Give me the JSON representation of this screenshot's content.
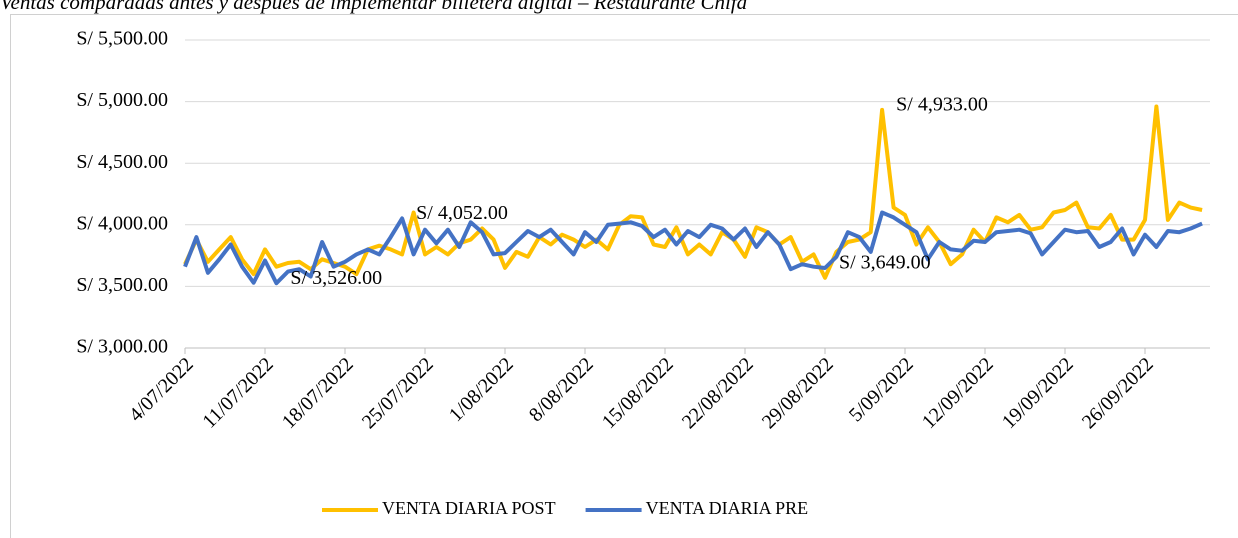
{
  "chart_data": {
    "type": "line",
    "title": "Ventas comparadas antes y después de implementar billetera digital – Restaurante Chifa",
    "categories": [
      "4/07/2022",
      null,
      null,
      null,
      null,
      null,
      null,
      "11/07/2022",
      null,
      null,
      null,
      null,
      null,
      null,
      "18/07/2022",
      null,
      null,
      null,
      null,
      null,
      null,
      "25/07/2022",
      null,
      null,
      null,
      null,
      null,
      null,
      "1/08/2022",
      null,
      null,
      null,
      null,
      null,
      null,
      "8/08/2022",
      null,
      null,
      null,
      null,
      null,
      null,
      "15/08/2022",
      null,
      null,
      null,
      null,
      null,
      null,
      "22/08/2022",
      null,
      null,
      null,
      null,
      null,
      null,
      "29/08/2022",
      null,
      null,
      null,
      null,
      null,
      null,
      "5/09/2022",
      null,
      null,
      null,
      null,
      null,
      null,
      "12/09/2022",
      null,
      null,
      null,
      null,
      null,
      null,
      "19/09/2022",
      null,
      null,
      null,
      null,
      null,
      null,
      "26/09/2022",
      null,
      null,
      null,
      null,
      null
    ],
    "series": [
      {
        "name": "VENTA DIARIA POST",
        "color": "#FFC000",
        "values": [
          3680,
          3880,
          3700,
          3800,
          3900,
          3720,
          3600,
          3800,
          3660,
          3690,
          3700,
          3640,
          3720,
          3690,
          3660,
          3600,
          3800,
          3830,
          3800,
          3760,
          4100,
          3760,
          3820,
          3760,
          3850,
          3880,
          3970,
          3880,
          3650,
          3780,
          3740,
          3900,
          3840,
          3920,
          3880,
          3820,
          3880,
          3800,
          4000,
          4070,
          4060,
          3840,
          3820,
          3980,
          3760,
          3840,
          3760,
          3940,
          3880,
          3740,
          3980,
          3940,
          3840,
          3900,
          3700,
          3760,
          3570,
          3780,
          3860,
          3880,
          3940,
          4933,
          4140,
          4080,
          3840,
          3980,
          3860,
          3680,
          3760,
          3960,
          3860,
          4060,
          4020,
          4080,
          3960,
          3980,
          4100,
          4120,
          4180,
          3980,
          3970,
          4080,
          3880,
          3880,
          4040,
          4960,
          4040,
          4180,
          4140,
          4120
        ],
        "value_labels": [
          null,
          null,
          null,
          null,
          null,
          null,
          null,
          null,
          null,
          null,
          null,
          null,
          null,
          null,
          null,
          null,
          null,
          null,
          null,
          null,
          null,
          null,
          null,
          null,
          null,
          null,
          null,
          null,
          null,
          null,
          null,
          null,
          null,
          null,
          null,
          null,
          null,
          null,
          null,
          null,
          null,
          null,
          null,
          null,
          null,
          null,
          null,
          null,
          null,
          null,
          null,
          null,
          null,
          null,
          null,
          null,
          null,
          null,
          null,
          null,
          null,
          "S/ 4,933.00",
          null,
          null,
          null,
          null,
          null,
          null,
          null,
          null,
          null,
          null,
          null,
          null,
          null,
          null,
          null,
          null,
          null,
          null,
          null,
          null,
          null,
          null,
          null,
          null,
          null,
          null,
          null,
          null
        ]
      },
      {
        "name": "VENTA DIARIA PRE",
        "color": "#4472C4",
        "values": [
          3660,
          3900,
          3610,
          3720,
          3840,
          3660,
          3530,
          3710,
          3526,
          3620,
          3640,
          3580,
          3860,
          3660,
          3700,
          3760,
          3800,
          3760,
          3900,
          4052,
          3760,
          3960,
          3850,
          3960,
          3820,
          4020,
          3940,
          3760,
          3770,
          3860,
          3950,
          3900,
          3960,
          3860,
          3760,
          3940,
          3860,
          4000,
          4010,
          4020,
          3990,
          3900,
          3960,
          3840,
          3950,
          3900,
          4000,
          3970,
          3880,
          3970,
          3820,
          3940,
          3840,
          3640,
          3680,
          3660,
          3649,
          3740,
          3940,
          3900,
          3780,
          4100,
          4060,
          4000,
          3940,
          3720,
          3860,
          3800,
          3790,
          3870,
          3860,
          3940,
          3950,
          3960,
          3930,
          3760,
          3860,
          3960,
          3940,
          3950,
          3820,
          3860,
          3970,
          3760,
          3920,
          3820,
          3950,
          3940,
          3970,
          4010
        ],
        "value_labels": [
          null,
          null,
          null,
          null,
          null,
          null,
          null,
          null,
          "S/ 3,526.00",
          null,
          null,
          null,
          null,
          null,
          null,
          null,
          null,
          null,
          null,
          "S/ 4,052.00",
          null,
          null,
          null,
          null,
          null,
          null,
          null,
          null,
          null,
          null,
          null,
          null,
          null,
          null,
          null,
          null,
          null,
          null,
          null,
          null,
          null,
          null,
          null,
          null,
          null,
          null,
          null,
          null,
          null,
          null,
          null,
          null,
          null,
          null,
          null,
          null,
          "S/ 3,649.00",
          null,
          null,
          null,
          null,
          null,
          null,
          null,
          null,
          null,
          null,
          null,
          null,
          null,
          null,
          null,
          null,
          null,
          null,
          null,
          null,
          null,
          null,
          null,
          null,
          null,
          null,
          null,
          null,
          null,
          null,
          null,
          null,
          null
        ]
      }
    ],
    "ylim": [
      3000,
      5500
    ],
    "yticks": [
      {
        "value": 3000,
        "label": "S/ 3,000.00"
      },
      {
        "value": 3500,
        "label": "S/ 3,500.00"
      },
      {
        "value": 4000,
        "label": "S/ 4,000.00"
      },
      {
        "value": 4500,
        "label": "S/ 4,500.00"
      },
      {
        "value": 5000,
        "label": "S/ 5,000.00"
      },
      {
        "value": 5500,
        "label": "S/ 5,500.00"
      }
    ],
    "grid": true,
    "legend": "bottom"
  }
}
